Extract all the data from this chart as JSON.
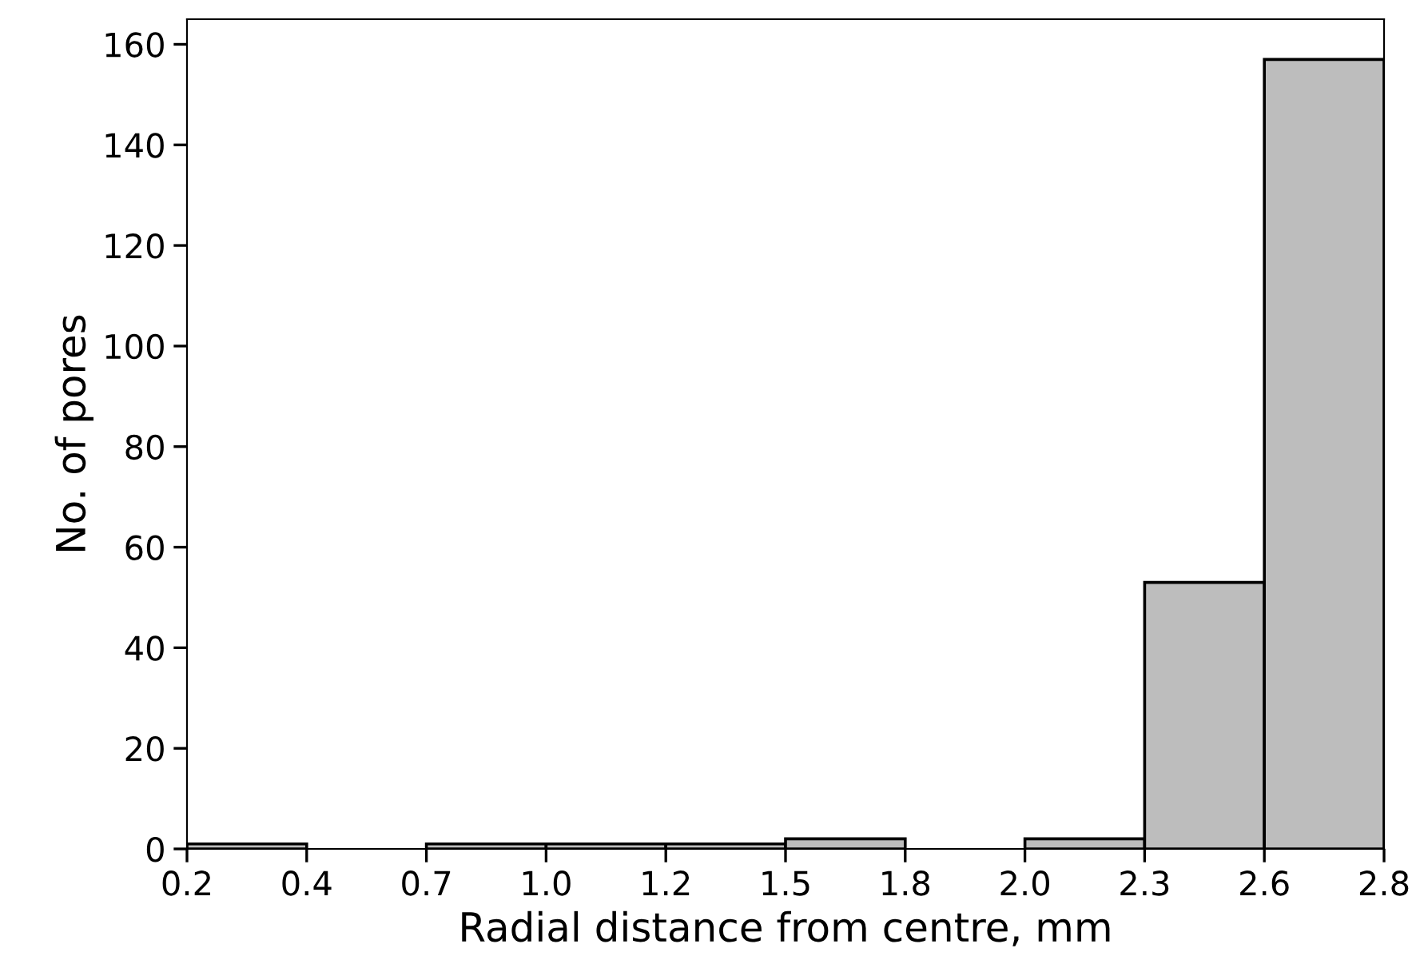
{
  "chart_data": {
    "type": "histogram",
    "xlabel": "Radial distance from centre, mm",
    "ylabel": "No. of pores",
    "bins": [
      0.178,
      0.444,
      0.71,
      0.976,
      1.242,
      1.508,
      1.774,
      2.04,
      2.306,
      2.572,
      2.838
    ],
    "values": [
      1,
      0,
      1,
      1,
      1,
      2,
      0,
      2,
      53,
      157
    ],
    "color": "#bdbdbd",
    "xlim": [
      0.178,
      2.838
    ],
    "ylim": [
      0,
      165
    ],
    "xticks": [
      {
        "value": 0.178,
        "label": "0.2"
      },
      {
        "value": 0.444,
        "label": "0.4"
      },
      {
        "value": 0.71,
        "label": "0.7"
      },
      {
        "value": 0.976,
        "label": "1.0"
      },
      {
        "value": 1.242,
        "label": "1.2"
      },
      {
        "value": 1.508,
        "label": "1.5"
      },
      {
        "value": 1.774,
        "label": "1.8"
      },
      {
        "value": 2.04,
        "label": "2.0"
      },
      {
        "value": 2.306,
        "label": "2.3"
      },
      {
        "value": 2.572,
        "label": "2.6"
      },
      {
        "value": 2.838,
        "label": "2.8"
      }
    ],
    "yticks": [
      0,
      20,
      40,
      60,
      80,
      100,
      120,
      140,
      160
    ],
    "grid": false
  }
}
